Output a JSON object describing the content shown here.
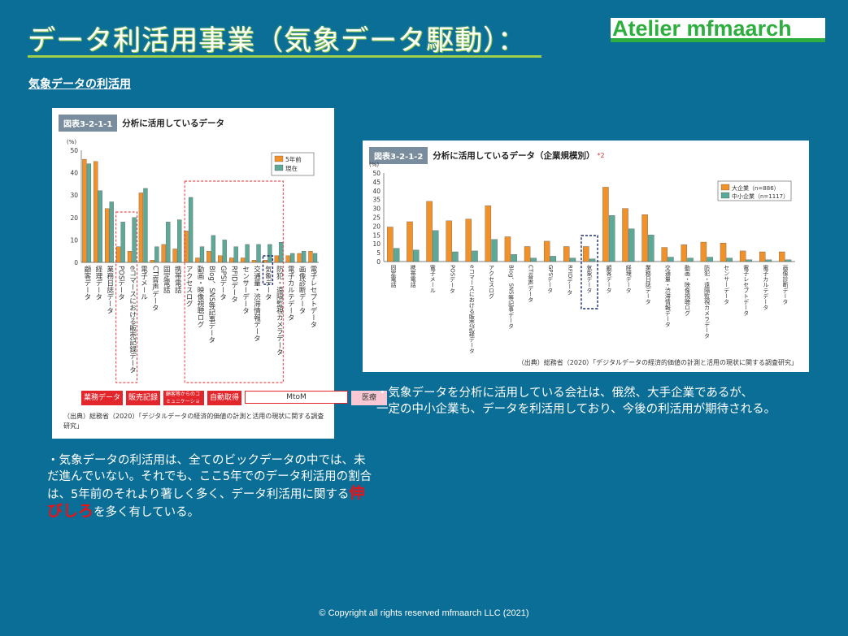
{
  "header": {
    "title": "データ利活用事業（気象データ駆動）：",
    "logo_text": "Atelier mfmaarch",
    "subtitle": "気象データの利活用"
  },
  "colors": {
    "background": "#0a6e97",
    "accent_green": "#9fd04a",
    "logo_green": "#2fae40",
    "series_orange": "#f0912a",
    "series_teal": "#5ea897",
    "highlight_red": "#e8121b"
  },
  "panel1": {
    "badge": "図表3-2-1-1",
    "name": "分析に活用しているデータ",
    "source": "（出典）総務省（2020）「デジタルデータの経済的価値の計測と活用の現状に関する調査研究」",
    "categories": [
      "業務データ",
      "販売記録",
      "顧客等からのコミュニケーション",
      "自動取得",
      "MtoM",
      "医療"
    ]
  },
  "panel2": {
    "badge": "図表3-2-1-2",
    "name": "分析に活用しているデータ（企業規模別）",
    "name_sup": "*2",
    "source": "（出典）総務省（2020）「デジタルデータの経済的価値の計測と活用の現状に関する調査研究」"
  },
  "chart_data": [
    {
      "type": "bar",
      "ylabel": "(%)",
      "ylim": [
        0,
        50
      ],
      "yticks": [
        0,
        10,
        20,
        30,
        40,
        50
      ],
      "categories": [
        "顧客データ",
        "経理データ",
        "業務日誌データ",
        "POSデータ",
        "eコマースにおける販売記録データ",
        "電子メール",
        "CTI音声データ",
        "固定電話",
        "携帯電話",
        "アクセスログ",
        "動画・映像視聴ログ",
        "Blog、SNS等記事データ",
        "GPSデータ",
        "RFIDデータ",
        "センサーデータ",
        "交通量・渋滞情報データ",
        "気象データ",
        "防犯・遠隔監視カメラデータ",
        "電子カルテデータ",
        "画像診断データ",
        "電子レセプトデータ"
      ],
      "series": [
        {
          "name": "5年前",
          "values": [
            46,
            45,
            24,
            7,
            5,
            31,
            1,
            8,
            6,
            14,
            2,
            5,
            3,
            2,
            2,
            1,
            1,
            3,
            3,
            4,
            5
          ]
        },
        {
          "name": "現在",
          "values": [
            44,
            32,
            27,
            18,
            20,
            33,
            7,
            18,
            19,
            29,
            7,
            12,
            10,
            7,
            8,
            8,
            8,
            9,
            4,
            5,
            4
          ]
        }
      ],
      "legend": "top-right",
      "grid": false
    },
    {
      "type": "bar",
      "ylabel": "(%)",
      "ylim": [
        0,
        50
      ],
      "yticks": [
        0,
        5,
        10,
        15,
        20,
        25,
        30,
        35,
        40,
        45,
        50
      ],
      "categories": [
        "固定電話",
        "携帯電話",
        "電子メール",
        "POSデータ",
        "eコマースにおける販売記録データ",
        "アクセスログ",
        "Blog、SNS等記事データ",
        "CTI音声データ",
        "GPSデータ",
        "RFIDデータ",
        "気象データ",
        "顧客データ",
        "経理データ",
        "業務日誌データ",
        "交通量・渋滞情報データ",
        "動画・映像視聴ログ",
        "防犯・遠隔監視カメラデータ",
        "センサーデータ",
        "電子レセプトデータ",
        "電子カルテデータ",
        "画像診断データ"
      ],
      "series": [
        {
          "name": "大企業（n=886）",
          "values": [
            19.5,
            22.5,
            34,
            23,
            24,
            31.5,
            14,
            8.5,
            11.5,
            8.5,
            8.5,
            42,
            30,
            26.5,
            8,
            9.5,
            11,
            10.5,
            6,
            5.5,
            5.5
          ]
        },
        {
          "name": "中小企業（n=1117）",
          "values": [
            7.5,
            6.5,
            17.5,
            5.5,
            6,
            12.5,
            4,
            2,
            3,
            2,
            1.5,
            26,
            18.5,
            15,
            2.5,
            2,
            2.5,
            2,
            1,
            1,
            1
          ]
        }
      ],
      "legend": "top-right",
      "grid": false
    }
  ],
  "text1": {
    "part1": "・気象データの利活用は、全てのビックデータの中では、未だ進んでいない。それでも、ここ5年でのデータ利活用の割合は、5年前のそれより著しく多く、データ利活用に関する",
    "highlight": "伸びしろ",
    "part2": "を多く有している。"
  },
  "text2": {
    "line1": "・気象データを分析に活用している会社は、俄然、大手企業であるが、",
    "line2": "一定の中小企業も、データを利活用しており、今後の利活用が期待される。"
  },
  "footer": {
    "copyright": "© Copyright all rights reserved mfmaarch LLC (2021)"
  }
}
